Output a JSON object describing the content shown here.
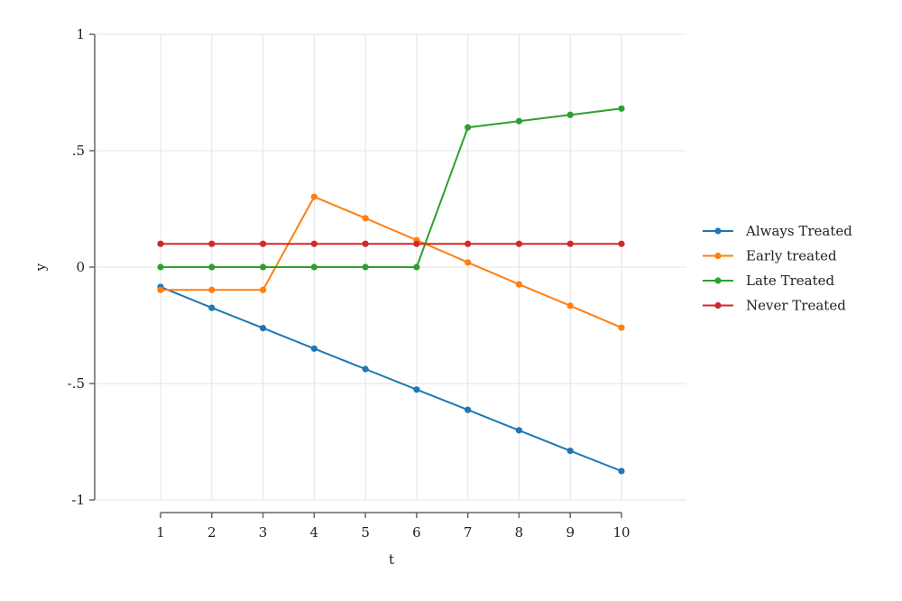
{
  "chart_data": {
    "type": "line",
    "title": "",
    "xlabel": "t",
    "ylabel": "y",
    "x": [
      1,
      2,
      3,
      4,
      5,
      6,
      7,
      8,
      9,
      10
    ],
    "xlim": [
      1,
      10
    ],
    "ylim": [
      -1,
      1
    ],
    "x_ticks": [
      "1",
      "2",
      "3",
      "4",
      "5",
      "6",
      "7",
      "8",
      "9",
      "10"
    ],
    "y_ticks": [
      {
        "value": -1,
        "label": "-1"
      },
      {
        "value": -0.5,
        "label": "-.5"
      },
      {
        "value": 0,
        "label": "0"
      },
      {
        "value": 0.5,
        "label": ".5"
      },
      {
        "value": 1,
        "label": "1"
      }
    ],
    "grid": true,
    "legend_position": "right",
    "series": [
      {
        "name": "Always Treated",
        "color": "#1f77b4",
        "values": [
          -0.085,
          -0.175,
          -0.262,
          -0.35,
          -0.438,
          -0.526,
          -0.613,
          -0.701,
          -0.789,
          -0.876
        ]
      },
      {
        "name": "Early treated",
        "color": "#ff7f0e",
        "values": [
          -0.098,
          -0.098,
          -0.098,
          0.302,
          0.21,
          0.116,
          0.02,
          -0.074,
          -0.166,
          -0.26
        ]
      },
      {
        "name": "Late Treated",
        "color": "#2ca02c",
        "values": [
          0,
          0,
          0,
          0,
          0,
          0,
          0.6,
          0.627,
          0.654,
          0.681
        ]
      },
      {
        "name": "Never Treated",
        "color": "#d62728",
        "values": [
          0.1,
          0.1,
          0.1,
          0.1,
          0.1,
          0.1,
          0.1,
          0.1,
          0.1,
          0.1
        ]
      }
    ]
  }
}
